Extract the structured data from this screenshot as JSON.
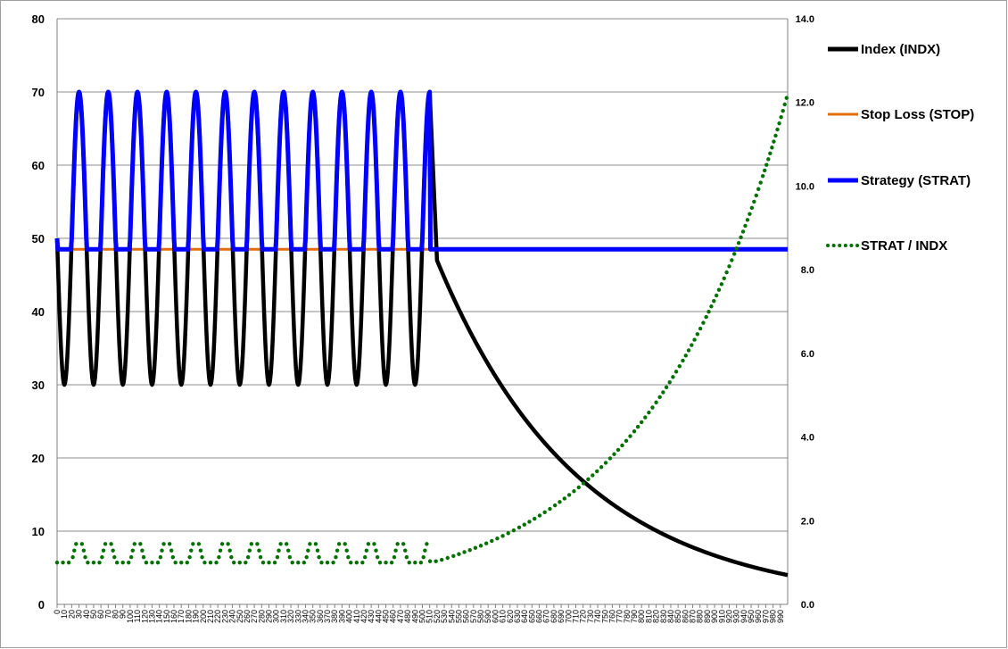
{
  "chart_data": {
    "type": "line",
    "title": "",
    "xlabel": "",
    "ylabel": "",
    "y2label": "",
    "x_step": 10,
    "x_tick_count": 100,
    "x_tick_labels": [
      "0",
      "10",
      "20",
      "30",
      "40",
      "50",
      "60",
      "70",
      "80",
      "90",
      "100",
      "110",
      "120",
      "130",
      "140",
      "150",
      "160",
      "170",
      "180",
      "190",
      "200",
      "210",
      "220",
      "230",
      "240",
      "250",
      "260",
      "270",
      "280",
      "290",
      "300",
      "310",
      "320",
      "330",
      "340",
      "350",
      "360",
      "370",
      "380",
      "390",
      "400",
      "410",
      "420",
      "430",
      "440",
      "450",
      "460",
      "470",
      "480",
      "490",
      "500",
      "510",
      "520",
      "530",
      "540",
      "550",
      "560",
      "570",
      "580",
      "590",
      "600",
      "610",
      "620",
      "630",
      "640",
      "650",
      "660",
      "670",
      "680",
      "690",
      "700",
      "710",
      "720",
      "730",
      "740",
      "750",
      "760",
      "770",
      "780",
      "790",
      "800",
      "810",
      "820",
      "830",
      "840",
      "850",
      "860",
      "870",
      "880",
      "890",
      "900",
      "910",
      "920",
      "930",
      "940",
      "950",
      "960",
      "970",
      "980",
      "990"
    ],
    "xlim": [
      0,
      1000
    ],
    "ylim": [
      0,
      80
    ],
    "y2lim": [
      0,
      14
    ],
    "y_ticks": [
      "0",
      "10",
      "20",
      "30",
      "40",
      "50",
      "60",
      "70",
      "80"
    ],
    "y2_ticks": [
      "0.0",
      "2.0",
      "4.0",
      "6.0",
      "8.0",
      "10.0",
      "12.0",
      "14.0"
    ],
    "grid": true,
    "legend_position": "right",
    "series": [
      {
        "name": "Index (INDX)",
        "axis": "left",
        "color": "#000000",
        "style": "solid-thick",
        "oscillation": {
          "x_start": 0,
          "x_end": 510,
          "center": 50,
          "amplitude": 20,
          "period": 40,
          "start_phase": "ascending"
        },
        "decay": {
          "x_start": 520,
          "x_end": 1000,
          "start_value": 47,
          "end_value": 4
        }
      },
      {
        "name": "Stop Loss (STOP)",
        "axis": "left",
        "color": "#E36C0A",
        "style": "solid-thin",
        "constant": 48.5,
        "x_start": 0,
        "x_end": 510
      },
      {
        "name": "Strategy (STRAT)",
        "axis": "left",
        "color": "#0000FF",
        "style": "solid-thick",
        "floor": 48.5,
        "follows": "Index (INDX)",
        "x_start": 0,
        "x_end": 1000
      },
      {
        "name": "STRAT / INDX",
        "axis": "right",
        "color": "#007000",
        "style": "dotted",
        "oscillation": {
          "x_start": 0,
          "x_end": 510,
          "low": 1.0,
          "high": 1.55
        },
        "rise": {
          "x_start": 520,
          "x_end": 1000,
          "start_value": 1.03,
          "end_value": 12.2
        }
      }
    ]
  }
}
